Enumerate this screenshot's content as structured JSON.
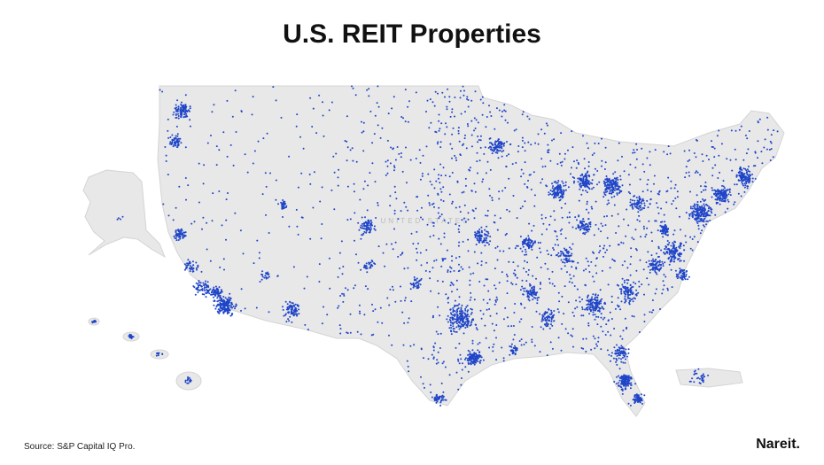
{
  "title": "U.S. REIT Properties",
  "map": {
    "label": "UNITED STATES"
  },
  "source": "Source: S&P Capital IQ Pro.",
  "logo": "Nareit."
}
